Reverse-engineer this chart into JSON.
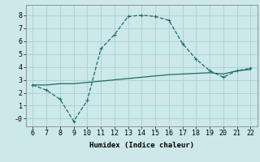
{
  "title": "",
  "xlabel": "Humidex (Indice chaleur)",
  "ylabel": "",
  "bg_color": "#cce8e8",
  "grid_color": "#aed0d0",
  "line_color": "#1a6b6b",
  "x_line1": [
    6,
    7,
    8,
    9,
    10,
    11,
    12,
    13,
    14,
    15,
    16,
    17,
    18,
    19,
    20,
    21,
    22
  ],
  "y_line1": [
    2.6,
    2.2,
    1.5,
    -0.2,
    1.4,
    5.4,
    6.5,
    7.9,
    8.0,
    7.9,
    7.6,
    5.8,
    4.6,
    3.7,
    3.2,
    3.7,
    3.9
  ],
  "x_line2": [
    6,
    7,
    8,
    9,
    10,
    11,
    12,
    13,
    14,
    15,
    16,
    17,
    18,
    19,
    20,
    21,
    22
  ],
  "y_line2": [
    2.6,
    2.6,
    2.7,
    2.7,
    2.8,
    2.9,
    3.0,
    3.1,
    3.2,
    3.3,
    3.4,
    3.45,
    3.5,
    3.55,
    3.45,
    3.7,
    3.8
  ],
  "xlim": [
    5.5,
    22.5
  ],
  "ylim": [
    -0.6,
    8.8
  ],
  "xticks": [
    6,
    7,
    8,
    9,
    10,
    11,
    12,
    13,
    14,
    15,
    16,
    17,
    18,
    19,
    20,
    21,
    22
  ],
  "yticks": [
    0,
    1,
    2,
    3,
    4,
    5,
    6,
    7,
    8
  ],
  "ytick_labels": [
    "-0",
    "1",
    "2",
    "3",
    "4",
    "5",
    "6",
    "7",
    "8"
  ],
  "tick_fontsize": 6.0,
  "xlabel_fontsize": 6.5
}
